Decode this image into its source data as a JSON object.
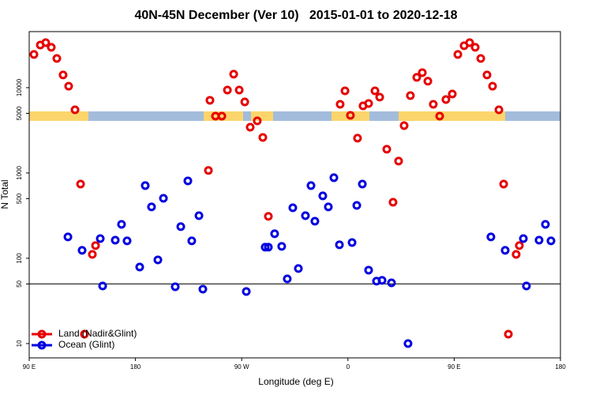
{
  "chart_data": {
    "type": "scatter",
    "title": "40N-45N December (Ver 10)   2015-01-01 to 2020-12-18",
    "x_label": "Longitude (deg E)",
    "y_label": "N Total",
    "log_y": true,
    "xlim": [
      90,
      540
    ],
    "ylim": [
      6.8,
      45400
    ],
    "xticks": [
      {
        "value": 90,
        "label": "90 E"
      },
      180,
      {
        "value": 270,
        "label": "90 W"
      },
      {
        "value": 360,
        "label": "0"
      },
      {
        "value": 450,
        "label": "90 E"
      },
      {
        "value": 540,
        "label": "180"
      }
    ],
    "yticks": [
      10,
      50,
      100,
      500,
      1000,
      5000,
      10000
    ],
    "hline": 50,
    "legend": "bottom-left",
    "series": [
      {
        "name": "Land (Nadir&Glint)",
        "color": "#e60000",
        "x": [
          94.0,
          99.4,
          104.0,
          108.7,
          113.4,
          118.7,
          123.4,
          128.8,
          133.5,
          136.8,
          143.5,
          146.2,
          243.1,
          247.8,
          253.2,
          257.9,
          263.2,
          267.9,
          272.6,
          277.2,
          283.2,
          287.9,
          292.6,
          241.8,
          353.4,
          357.5,
          362.1,
          368.1,
          372.8,
          377.5,
          382.9,
          386.9,
          392.9,
          398.2,
          402.9,
          407.6,
          412.9,
          418.3,
          423.0,
          427.7,
          432.3,
          437.7,
          443.0,
          448.4,
          453.1,
          458.4,
          463.1,
          467.8,
          472.5,
          477.8,
          482.5,
          487.9,
          491.9,
          495.9,
          502.5,
          505.2
        ],
        "values": [
          24500,
          31600,
          33700,
          29700,
          22000,
          14100,
          10400,
          5500,
          741,
          12.9,
          111,
          141,
          7110,
          4640,
          4640,
          9380,
          14400,
          9380,
          6810,
          3440,
          4080,
          2610,
          310,
          1070,
          6390,
          9180,
          4740,
          2560,
          6120,
          6530,
          9180,
          7740,
          1900,
          454,
          1380,
          3590,
          8080,
          13200,
          15000,
          11900,
          6390,
          4640,
          7260,
          8430,
          24500,
          31000,
          33700,
          29700,
          22000,
          14100,
          10400,
          5500,
          741,
          12.9,
          111,
          141
        ]
      },
      {
        "name": "Ocean (Glint)",
        "color": "#0000e0",
        "x": [
          122.8,
          134.8,
          150.2,
          152.2,
          162.9,
          168.2,
          172.9,
          183.6,
          188.3,
          193.6,
          199.0,
          203.7,
          213.7,
          218.4,
          224.4,
          227.7,
          233.8,
          237.1,
          273.9,
          289.9,
          292.6,
          297.9,
          303.9,
          308.6,
          313.3,
          318.0,
          324.0,
          328.7,
          332.0,
          338.7,
          343.4,
          348.1,
          352.8,
          363.5,
          367.5,
          372.2,
          377.5,
          384.2,
          388.9,
          396.9,
          410.9,
          481.1,
          493.2,
          508.6,
          511.2,
          521.9,
          527.3,
          532.0
        ],
        "values": [
          178,
          124,
          170,
          47.4,
          163,
          250,
          160,
          79,
          711,
          400,
          95.8,
          505,
          46.4,
          235,
          808,
          160,
          316,
          43.5,
          40.8,
          135,
          135,
          194,
          138,
          57.4,
          391,
          75.8,
          316,
          711,
          272,
          539,
          400,
          880,
          144,
          153,
          417,
          741,
          72.6,
          53.9,
          55.1,
          51.6,
          10,
          178,
          124,
          170,
          47.4,
          163,
          250,
          160
        ]
      }
    ]
  }
}
